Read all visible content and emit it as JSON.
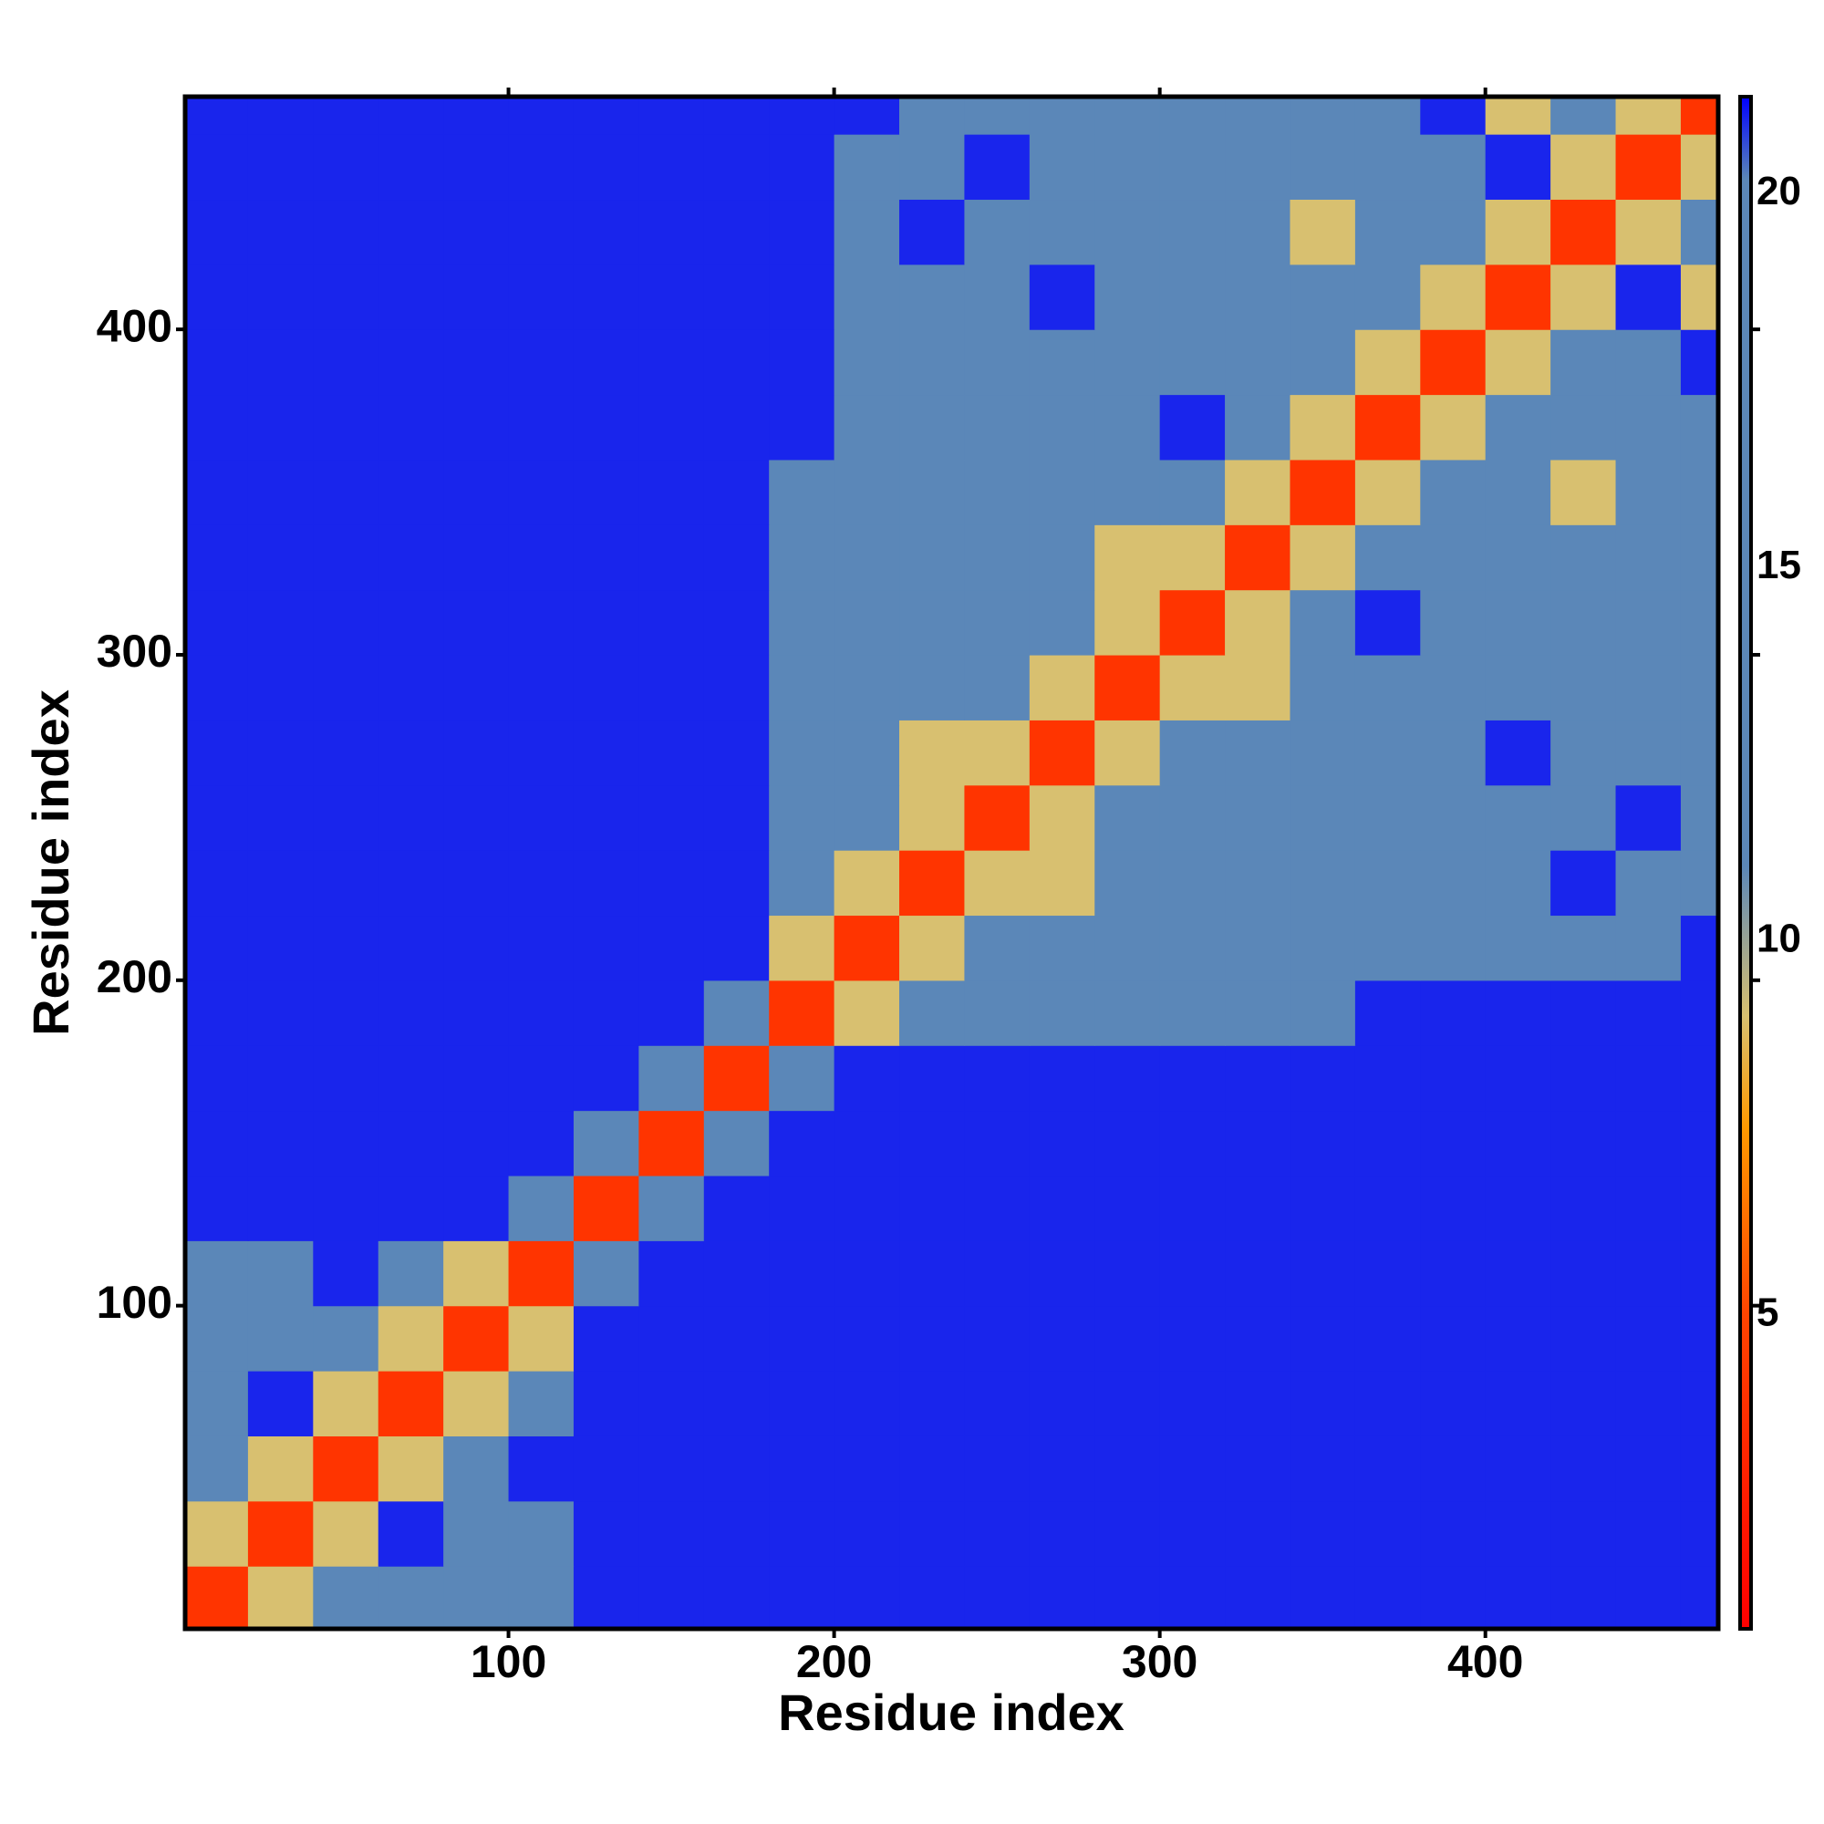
{
  "chart_data": {
    "type": "heatmap",
    "xlabel": "Residue index",
    "ylabel": "Residue index",
    "x": [
      10,
      30,
      50,
      70,
      90,
      110,
      130,
      150,
      170,
      190,
      210,
      230,
      250,
      270,
      290,
      310,
      330,
      350,
      370,
      390,
      410,
      430,
      450,
      470
    ],
    "y": [
      10,
      30,
      50,
      70,
      90,
      110,
      130,
      150,
      170,
      190,
      210,
      230,
      250,
      270,
      290,
      310,
      330,
      350,
      370,
      390,
      410,
      430,
      450,
      470
    ],
    "xlim": [
      0.7,
      471.5
    ],
    "ylim": [
      0.7,
      471.5
    ],
    "xticks": [
      100,
      200,
      300,
      400
    ],
    "yticks": [
      100,
      200,
      300,
      400
    ],
    "zlim": [
      0.8,
      21.3
    ],
    "zticks": [
      5,
      10,
      15,
      20
    ],
    "colorscale": [
      [
        0.8,
        "#ff0000"
      ],
      [
        5,
        "#ff4400"
      ],
      [
        7.5,
        "#ff9900"
      ],
      [
        9,
        "#d8c070"
      ],
      [
        11,
        "#5b87b8"
      ],
      [
        20.2,
        "#5b87b8"
      ],
      [
        21.3,
        "#0000ff"
      ]
    ],
    "z": [
      [
        4,
        9,
        15,
        15,
        15,
        15,
        21,
        21,
        21,
        21,
        21,
        21,
        21,
        21,
        21,
        21,
        21,
        21,
        21,
        21,
        21,
        21,
        21,
        21
      ],
      [
        9,
        4,
        9,
        21,
        15,
        15,
        21,
        21,
        21,
        21,
        21,
        21,
        21,
        21,
        21,
        21,
        21,
        21,
        21,
        21,
        21,
        21,
        21,
        21
      ],
      [
        15,
        9,
        4,
        9,
        15,
        21,
        21,
        21,
        21,
        21,
        21,
        21,
        21,
        21,
        21,
        21,
        21,
        21,
        21,
        21,
        21,
        21,
        21,
        21
      ],
      [
        15,
        21,
        9,
        4,
        9,
        15,
        21,
        21,
        21,
        21,
        21,
        21,
        21,
        21,
        21,
        21,
        21,
        21,
        21,
        21,
        21,
        21,
        21,
        21
      ],
      [
        15,
        15,
        15,
        9,
        4,
        9,
        21,
        21,
        21,
        21,
        21,
        21,
        21,
        21,
        21,
        21,
        21,
        21,
        21,
        21,
        21,
        21,
        21,
        21
      ],
      [
        15,
        15,
        21,
        15,
        9,
        4,
        14,
        21,
        21,
        21,
        21,
        21,
        21,
        21,
        21,
        21,
        21,
        21,
        21,
        21,
        21,
        21,
        21,
        21
      ],
      [
        21,
        21,
        21,
        21,
        21,
        14,
        4,
        14,
        21,
        21,
        21,
        21,
        21,
        21,
        21,
        21,
        21,
        21,
        21,
        21,
        21,
        21,
        21,
        21
      ],
      [
        21,
        21,
        21,
        21,
        21,
        21,
        14,
        4,
        14,
        21,
        21,
        21,
        21,
        21,
        21,
        21,
        21,
        21,
        21,
        21,
        21,
        21,
        21,
        21
      ],
      [
        21,
        21,
        21,
        21,
        21,
        21,
        21,
        14,
        4,
        14,
        21,
        21,
        21,
        21,
        21,
        21,
        21,
        21,
        21,
        21,
        21,
        21,
        21,
        21
      ],
      [
        21,
        21,
        21,
        21,
        21,
        21,
        21,
        21,
        14,
        4,
        9,
        15,
        15,
        15,
        15,
        15,
        15,
        15,
        21,
        21,
        21,
        21,
        21,
        21
      ],
      [
        21,
        21,
        21,
        21,
        21,
        21,
        21,
        21,
        21,
        9,
        4,
        9,
        15,
        15,
        15,
        15,
        15,
        15,
        15,
        15,
        15,
        15,
        15,
        21
      ],
      [
        21,
        21,
        21,
        21,
        21,
        21,
        21,
        21,
        21,
        15,
        9,
        4,
        9,
        9,
        15,
        15,
        15,
        15,
        15,
        15,
        15,
        21,
        15,
        15
      ],
      [
        21,
        21,
        21,
        21,
        21,
        21,
        21,
        21,
        21,
        15,
        15,
        9,
        4,
        9,
        15,
        15,
        15,
        15,
        15,
        15,
        15,
        15,
        21,
        15
      ],
      [
        21,
        21,
        21,
        21,
        21,
        21,
        21,
        21,
        21,
        15,
        15,
        9,
        9,
        4,
        9,
        15,
        15,
        15,
        15,
        15,
        21,
        15,
        15,
        15
      ],
      [
        21,
        21,
        21,
        21,
        21,
        21,
        21,
        21,
        21,
        15,
        15,
        15,
        15,
        9,
        4,
        9,
        9,
        15,
        15,
        15,
        15,
        15,
        15,
        15
      ],
      [
        21,
        21,
        21,
        21,
        21,
        21,
        21,
        21,
        21,
        15,
        15,
        15,
        15,
        15,
        9,
        4,
        9,
        15,
        21,
        15,
        15,
        15,
        15,
        15
      ],
      [
        21,
        21,
        21,
        21,
        21,
        21,
        21,
        21,
        21,
        15,
        15,
        15,
        15,
        15,
        9,
        9,
        4,
        9,
        15,
        15,
        15,
        15,
        15,
        15
      ],
      [
        21,
        21,
        21,
        21,
        21,
        21,
        21,
        21,
        21,
        15,
        15,
        15,
        15,
        15,
        15,
        15,
        9,
        4,
        9,
        15,
        15,
        9,
        15,
        15
      ],
      [
        21,
        21,
        21,
        21,
        21,
        21,
        21,
        21,
        21,
        21,
        15,
        15,
        15,
        15,
        15,
        21,
        15,
        9,
        4,
        9,
        15,
        15,
        15,
        15
      ],
      [
        21,
        21,
        21,
        21,
        21,
        21,
        21,
        21,
        21,
        21,
        15,
        15,
        15,
        15,
        15,
        15,
        15,
        15,
        9,
        4,
        9,
        15,
        15,
        21
      ],
      [
        21,
        21,
        21,
        21,
        21,
        21,
        21,
        21,
        21,
        21,
        15,
        15,
        15,
        21,
        15,
        15,
        15,
        15,
        15,
        9,
        4,
        9,
        21,
        9
      ],
      [
        21,
        21,
        21,
        21,
        21,
        21,
        21,
        21,
        21,
        21,
        15,
        21,
        15,
        15,
        15,
        15,
        15,
        9,
        15,
        15,
        9,
        4,
        9,
        15
      ],
      [
        21,
        21,
        21,
        21,
        21,
        21,
        21,
        21,
        21,
        21,
        15,
        15,
        21,
        15,
        15,
        15,
        15,
        15,
        15,
        15,
        21,
        9,
        4,
        9
      ],
      [
        21,
        21,
        21,
        21,
        21,
        21,
        21,
        21,
        21,
        21,
        21,
        15,
        15,
        15,
        15,
        15,
        15,
        15,
        15,
        21,
        9,
        15,
        9,
        4
      ]
    ]
  }
}
